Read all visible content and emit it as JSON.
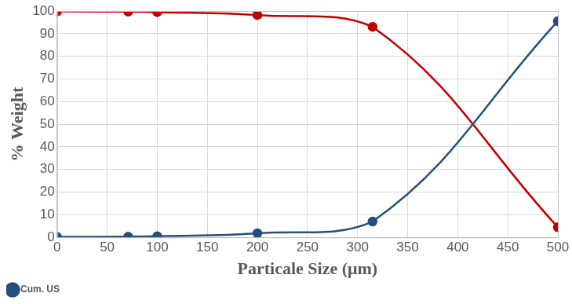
{
  "chart_data": {
    "type": "line",
    "x_label": "Particale Size (μm)",
    "y_label": "% Weight",
    "x": [
      0,
      71,
      100,
      200,
      315,
      500
    ],
    "series": [
      {
        "name": "Cum. US",
        "color": "#264f7c",
        "marker": "circle",
        "values": [
          0.2,
          0.3,
          0.5,
          1.8,
          7,
          95.5
        ]
      },
      {
        "color": "#c00000",
        "marker": "circle",
        "values": [
          99.8,
          99.7,
          99.5,
          98.2,
          93,
          4.5
        ]
      }
    ],
    "xlim": [
      0,
      500
    ],
    "xticks": [
      0,
      50,
      100,
      150,
      200,
      250,
      300,
      350,
      400,
      450,
      500
    ],
    "ylim": [
      0,
      100
    ],
    "yticks": [
      0,
      10,
      20,
      30,
      40,
      50,
      60,
      70,
      80,
      90,
      100
    ],
    "grid": true,
    "legend": "bottom left"
  }
}
